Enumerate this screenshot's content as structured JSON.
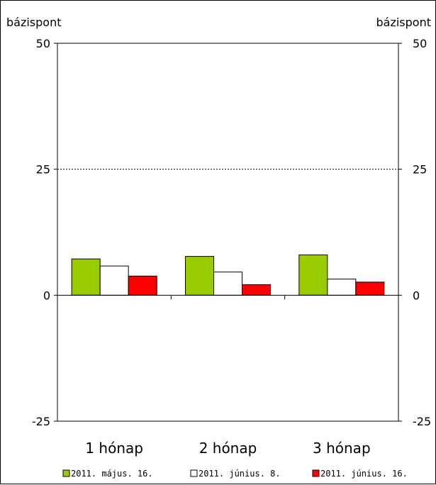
{
  "chart_data": {
    "type": "bar",
    "title": "",
    "ylabel_left": "bázispont",
    "ylabel_right": "bázispont",
    "ylim": [
      -25,
      50
    ],
    "yticks": [
      -25,
      0,
      25,
      50
    ],
    "grid": "horizontal dashed at 25",
    "legend_position": "bottom",
    "categories": [
      "1 hónap",
      "2 hónap",
      "3 hónap"
    ],
    "series": [
      {
        "name": "2011. május. 16.",
        "color": "#99cc00",
        "values": [
          7.2,
          7.7,
          8.0
        ]
      },
      {
        "name": "2011. június. 8.",
        "color": "#ffffff",
        "values": [
          5.8,
          4.6,
          3.2
        ]
      },
      {
        "name": "2011. június. 16.",
        "color": "#ff0000",
        "values": [
          3.8,
          2.1,
          2.6
        ]
      }
    ]
  }
}
